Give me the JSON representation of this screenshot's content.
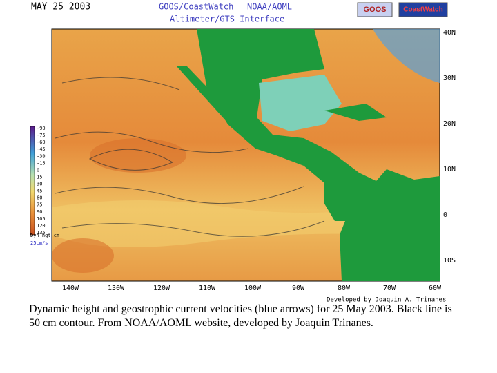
{
  "header": {
    "date": "MAY 25 2003",
    "title_left": "GOOS/CoastWatch",
    "title_right": "NOAA/AOML",
    "subtitle": "Altimeter/GTS Interface",
    "logos": [
      "GOOS",
      "CoastWatch"
    ]
  },
  "map": {
    "lat_labels": [
      "40N",
      "30N",
      "20N",
      "10N",
      "0",
      "10S"
    ],
    "lon_labels": [
      "140W",
      "130W",
      "120W",
      "110W",
      "100W",
      "90W",
      "80W",
      "70W",
      "60W"
    ],
    "credit": "Developed by Joaquin A. Trinanes"
  },
  "legend": {
    "values": [
      -90,
      -75,
      -60,
      -45,
      -30,
      -15,
      0,
      15,
      30,
      45,
      60,
      75,
      90,
      105,
      120,
      135
    ],
    "title": "Dyn hgt cm",
    "scale": "25cm/s"
  },
  "caption": "Dynamic height and geostrophic current velocities (blue arrows) for 25 May 2003. Black line is 50 cm contour.  From NOAA/AOML website, developed by Joaquin Trinanes."
}
